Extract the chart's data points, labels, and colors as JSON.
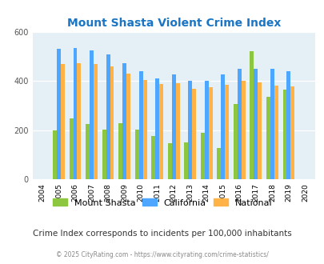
{
  "title": "Mount Shasta Violent Crime Index",
  "years": [
    2004,
    2005,
    2006,
    2007,
    2008,
    2009,
    2010,
    2011,
    2012,
    2013,
    2014,
    2015,
    2016,
    2017,
    2018,
    2019,
    2020
  ],
  "mount_shasta": [
    null,
    200,
    248,
    225,
    203,
    228,
    203,
    175,
    148,
    150,
    190,
    128,
    305,
    520,
    335,
    365,
    null
  ],
  "california": [
    null,
    530,
    535,
    525,
    508,
    473,
    440,
    410,
    425,
    400,
    400,
    425,
    448,
    450,
    450,
    440,
    null
  ],
  "national": [
    null,
    470,
    473,
    468,
    458,
    430,
    405,
    388,
    390,
    368,
    375,
    383,
    400,
    395,
    382,
    378,
    null
  ],
  "color_ms": "#8dc63f",
  "color_ca": "#4da6ff",
  "color_na": "#ffb347",
  "bg_color": "#e4f0f6",
  "ylim": [
    0,
    600
  ],
  "ylabel_ticks": [
    0,
    200,
    400,
    600
  ],
  "subtitle": "Crime Index corresponds to incidents per 100,000 inhabitants",
  "footer": "© 2025 CityRating.com - https://www.cityrating.com/crime-statistics/",
  "title_color": "#1a75c4",
  "subtitle_color": "#333333",
  "footer_color": "#888888"
}
